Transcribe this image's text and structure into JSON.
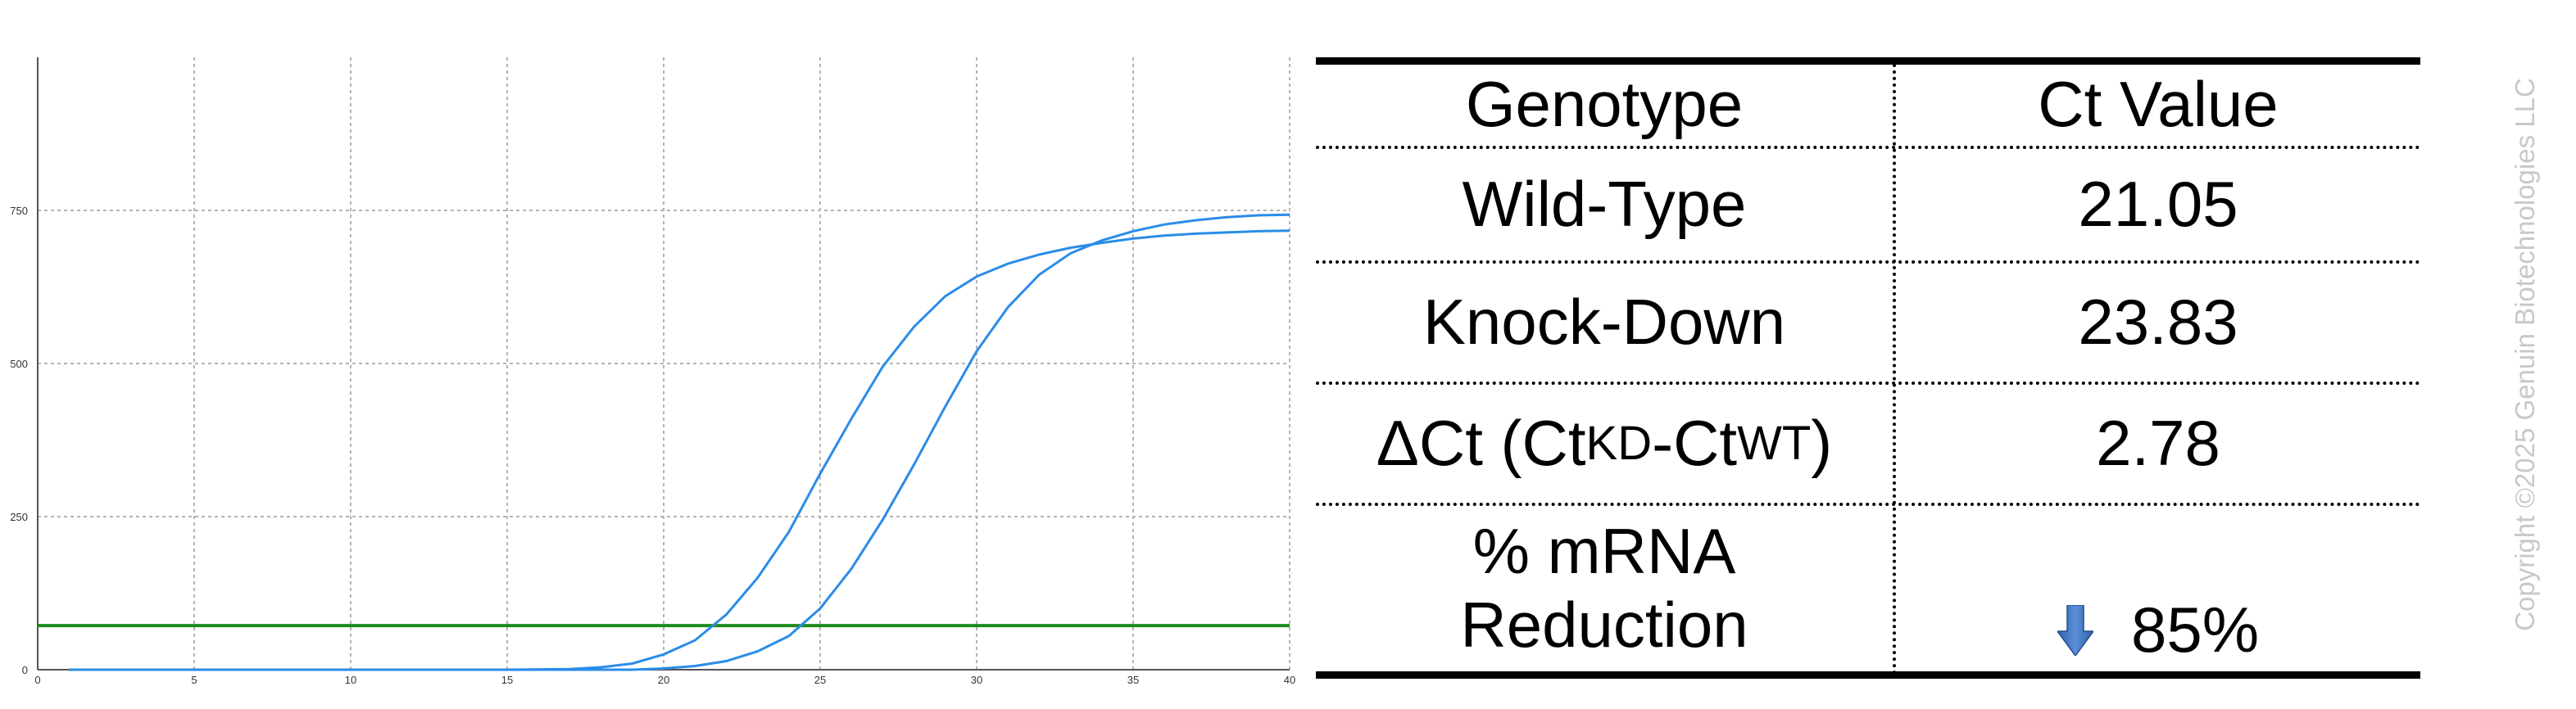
{
  "chart_data": {
    "type": "line",
    "title": "",
    "xlabel": "",
    "ylabel": "",
    "xlim": [
      0,
      40
    ],
    "ylim": [
      0,
      1000
    ],
    "xticks": [
      0,
      5,
      10,
      15,
      20,
      25,
      30,
      35,
      40
    ],
    "yticks": [
      0,
      250,
      500,
      750
    ],
    "grid": true,
    "curve_color": "#2a8ce8",
    "threshold_color": "#1f8a1f",
    "threshold": 72,
    "series": [
      {
        "points": [
          [
            1,
            0
          ],
          [
            5,
            0
          ],
          [
            10,
            0
          ],
          [
            15,
            0
          ],
          [
            17,
            1
          ],
          [
            18,
            4
          ],
          [
            19,
            10
          ],
          [
            20,
            25
          ],
          [
            21,
            48
          ],
          [
            22,
            90
          ],
          [
            23,
            150
          ],
          [
            24,
            225
          ],
          [
            25,
            320
          ],
          [
            26,
            410
          ],
          [
            27,
            495
          ],
          [
            28,
            560
          ],
          [
            29,
            610
          ],
          [
            30,
            642
          ],
          [
            31,
            663
          ],
          [
            32,
            678
          ],
          [
            33,
            689
          ],
          [
            34,
            697
          ],
          [
            35,
            704
          ],
          [
            36,
            709
          ],
          [
            37,
            712
          ],
          [
            38,
            714
          ],
          [
            39,
            716
          ],
          [
            40,
            717
          ]
        ]
      },
      {
        "points": [
          [
            1,
            0
          ],
          [
            5,
            0
          ],
          [
            10,
            0
          ],
          [
            15,
            0
          ],
          [
            19,
            0
          ],
          [
            20,
            2
          ],
          [
            21,
            6
          ],
          [
            22,
            14
          ],
          [
            23,
            30
          ],
          [
            24,
            55
          ],
          [
            25,
            100
          ],
          [
            26,
            165
          ],
          [
            27,
            245
          ],
          [
            28,
            335
          ],
          [
            29,
            430
          ],
          [
            30,
            520
          ],
          [
            31,
            592
          ],
          [
            32,
            645
          ],
          [
            33,
            680
          ],
          [
            34,
            701
          ],
          [
            35,
            716
          ],
          [
            36,
            727
          ],
          [
            37,
            734
          ],
          [
            38,
            739
          ],
          [
            39,
            742
          ],
          [
            40,
            743
          ]
        ]
      }
    ]
  },
  "table": {
    "header": {
      "genotype": "Genotype",
      "ct_value": "Ct Value"
    },
    "wild_type": {
      "label": "Wild-Type",
      "value": "21.05"
    },
    "knock_down": {
      "label": "Knock-Down",
      "value": "23.83"
    },
    "delta_ct": {
      "label_prefix": "ΔCt (Ct",
      "sub_kd": "KD",
      "label_mid": "-Ct",
      "sub_wt": "WT",
      "label_suffix": ")",
      "value": "2.78"
    },
    "reduction": {
      "label_line1": "% mRNA",
      "label_line2": "Reduction",
      "value": "85%",
      "icon": "down-arrow-icon",
      "icon_color": "#3a6fc0"
    }
  },
  "copyright": "Copyright ©2025 Genuin Biotechnologies LLC"
}
